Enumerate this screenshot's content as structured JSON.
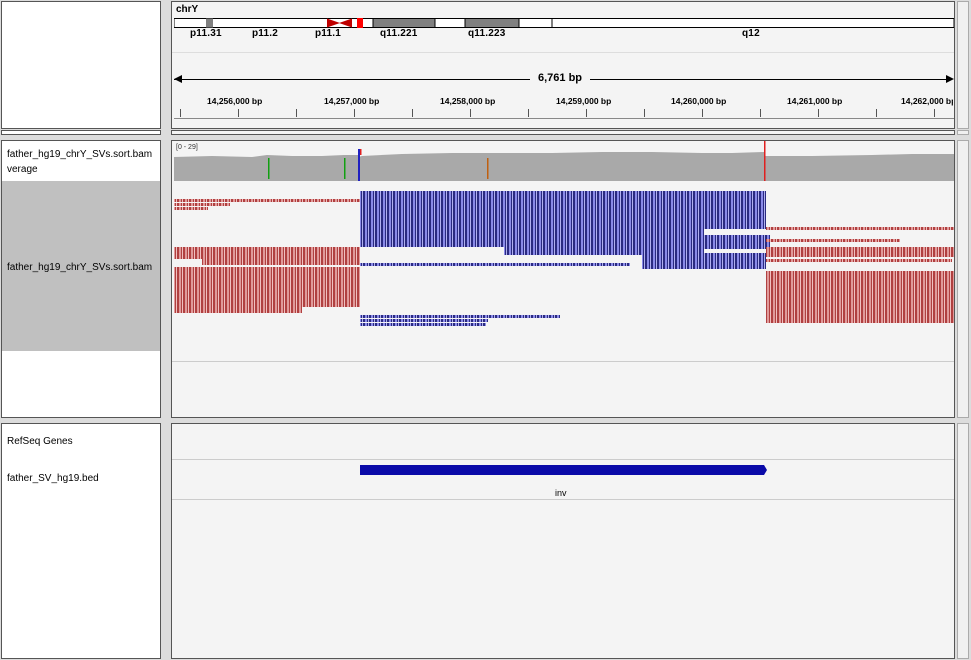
{
  "ruler": {
    "chromosome": "chrY",
    "bands": [
      "p11.31",
      "p11.2",
      "p11.1",
      "q11.221",
      "q11.223",
      "q12"
    ],
    "span_label": "6,761 bp",
    "ticks": [
      "14,256,000 bp",
      "14,257,000 bp",
      "14,258,000 bp",
      "14,259,000 bp",
      "14,260,000 bp",
      "14,261,000 bp",
      "14,262,000 bp"
    ]
  },
  "alignment_panel": {
    "coverage_track_label": "father_hg19_chrY_SVs.sort.bam\nverage",
    "coverage_range": "[0 - 29]",
    "alignment_track_label": "father_hg19_chrY_SVs.sort.bam"
  },
  "feature_panel": {
    "refseq_label": "RefSeq Genes",
    "bed_label": "father_SV_hg19.bed",
    "feature_name": "inv"
  },
  "colors": {
    "forward_read": "#e09a9a",
    "reverse_read_inverted": "#8a8ae8",
    "coverage": "#a9a9a9",
    "feature": "#0a0aa8"
  }
}
